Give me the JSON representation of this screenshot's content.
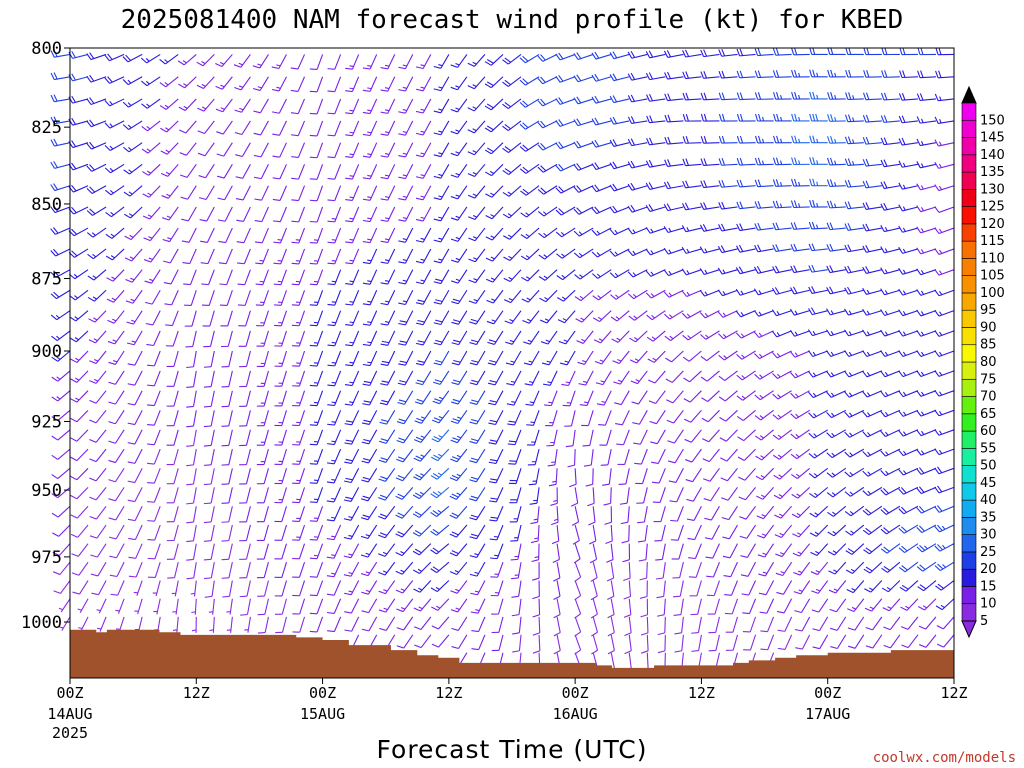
{
  "chart_data": {
    "type": "wind_profile",
    "title": "2025081400 NAM forecast wind profile (kt) for KBED",
    "xlabel": "Forecast Time (UTC)",
    "credit": "coolwx.com/models",
    "y_axis": {
      "ticks": [
        "800",
        "825",
        "850",
        "875",
        "900",
        "925",
        "950",
        "975",
        "1000"
      ],
      "range_hpa": [
        800,
        1022
      ]
    },
    "x_axis": {
      "range_hours": [
        0,
        84
      ],
      "ticks": [
        {
          "hour": 0,
          "time": "00Z",
          "date": "14AUG",
          "year": "2025"
        },
        {
          "hour": 12,
          "time": "12Z",
          "date": "",
          "year": ""
        },
        {
          "hour": 24,
          "time": "00Z",
          "date": "15AUG",
          "year": ""
        },
        {
          "hour": 36,
          "time": "12Z",
          "date": "",
          "year": ""
        },
        {
          "hour": 48,
          "time": "00Z",
          "date": "16AUG",
          "year": ""
        },
        {
          "hour": 60,
          "time": "12Z",
          "date": "",
          "year": ""
        },
        {
          "hour": 72,
          "time": "00Z",
          "date": "17AUG",
          "year": ""
        },
        {
          "hour": 84,
          "time": "12Z",
          "date": "",
          "year": ""
        }
      ]
    },
    "surface_pressure_hpa": [
      {
        "hour": 0,
        "p": 1003
      },
      {
        "hour": 2.5,
        "p": 1004
      },
      {
        "hour": 3.5,
        "p": 1003
      },
      {
        "hour": 8.5,
        "p": 1004
      },
      {
        "hour": 10.5,
        "p": 1005
      },
      {
        "hour": 21.5,
        "p": 1006
      },
      {
        "hour": 24,
        "p": 1007
      },
      {
        "hour": 26.5,
        "p": 1009
      },
      {
        "hour": 30.5,
        "p": 1011
      },
      {
        "hour": 33,
        "p": 1013
      },
      {
        "hour": 35,
        "p": 1014
      },
      {
        "hour": 37,
        "p": 1016
      },
      {
        "hour": 50,
        "p": 1017
      },
      {
        "hour": 51.5,
        "p": 1018
      },
      {
        "hour": 55.5,
        "p": 1017
      },
      {
        "hour": 63,
        "p": 1016
      },
      {
        "hour": 64.5,
        "p": 1015
      },
      {
        "hour": 67,
        "p": 1014
      },
      {
        "hour": 69,
        "p": 1013
      },
      {
        "hour": 72,
        "p": 1012
      },
      {
        "hour": 78,
        "p": 1011
      },
      {
        "hour": 84,
        "p": 1011
      }
    ],
    "colorbar": {
      "labels": [
        "5",
        "10",
        "15",
        "20",
        "25",
        "30",
        "35",
        "40",
        "45",
        "50",
        "55",
        "60",
        "65",
        "70",
        "75",
        "80",
        "85",
        "90",
        "95",
        "100",
        "105",
        "110",
        "115",
        "120",
        "125",
        "130",
        "135",
        "140",
        "145",
        "150"
      ],
      "colors": [
        "#8a2be2",
        "#7a1fe8",
        "#2a1ae0",
        "#1f3fe6",
        "#2266ee",
        "#1f8cf0",
        "#12aaf0",
        "#10c8e8",
        "#10e0d0",
        "#18f0a0",
        "#20f068",
        "#30f020",
        "#66f010",
        "#a8f010",
        "#d8f010",
        "#f8f800",
        "#f8e000",
        "#f8c800",
        "#f8a800",
        "#f89000",
        "#f88000",
        "#f87000",
        "#f84000",
        "#f81000",
        "#f00018",
        "#f00050",
        "#f00080",
        "#f000a8",
        "#f000d0",
        "#f000f0"
      ],
      "under_color": "#8a2be2",
      "over_color": "#000000"
    },
    "wind_barbs": {
      "description_hpa_levels": [
        800,
        825,
        850,
        875,
        900,
        925,
        950,
        975,
        1000
      ],
      "hours": [
        0,
        12,
        24,
        36,
        48,
        60,
        72,
        84
      ],
      "speed_kt": [
        [
          22,
          15,
          12,
          15,
          22,
          18,
          22,
          20
        ],
        [
          20,
          12,
          12,
          15,
          22,
          18,
          28,
          15
        ],
        [
          20,
          12,
          12,
          15,
          18,
          18,
          25,
          12
        ],
        [
          18,
          10,
          15,
          18,
          15,
          15,
          20,
          15
        ],
        [
          15,
          10,
          15,
          20,
          15,
          12,
          15,
          15
        ],
        [
          12,
          10,
          15,
          25,
          12,
          10,
          15,
          15
        ],
        [
          10,
          8,
          15,
          25,
          12,
          10,
          15,
          20
        ],
        [
          10,
          8,
          12,
          18,
          10,
          10,
          15,
          25
        ],
        [
          5,
          5,
          10,
          12,
          8,
          8,
          10,
          10
        ]
      ],
      "direction_deg": [
        [
          260,
          230,
          200,
          210,
          250,
          260,
          270,
          270
        ],
        [
          260,
          220,
          200,
          210,
          250,
          270,
          270,
          260
        ],
        [
          250,
          210,
          200,
          210,
          240,
          260,
          270,
          250
        ],
        [
          240,
          200,
          200,
          210,
          230,
          250,
          260,
          250
        ],
        [
          230,
          190,
          200,
          210,
          210,
          230,
          250,
          250
        ],
        [
          230,
          190,
          200,
          220,
          190,
          220,
          240,
          250
        ],
        [
          230,
          190,
          200,
          230,
          170,
          210,
          230,
          250
        ],
        [
          220,
          190,
          200,
          230,
          160,
          200,
          220,
          240
        ],
        [
          210,
          180,
          200,
          220,
          160,
          190,
          210,
          220
        ]
      ]
    }
  }
}
